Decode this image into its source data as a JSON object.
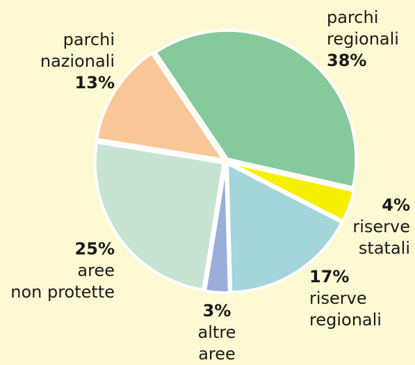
{
  "chart_data": {
    "type": "pie",
    "categories": [
      "parchi\nregionali",
      "riserve\nstatali",
      "riserve\nregionali",
      "altre\naree",
      "aree\nnon protette",
      "parchi\nnazionali"
    ],
    "values": [
      38,
      4,
      17,
      3,
      25,
      13
    ],
    "value_labels": [
      "38%",
      "4%",
      "17%",
      "3%",
      "25%",
      "13%"
    ],
    "colors": [
      "#86c99c",
      "#f5ef00",
      "#a3d5da",
      "#9aaed9",
      "#c7e4d3",
      "#f9c797"
    ]
  }
}
